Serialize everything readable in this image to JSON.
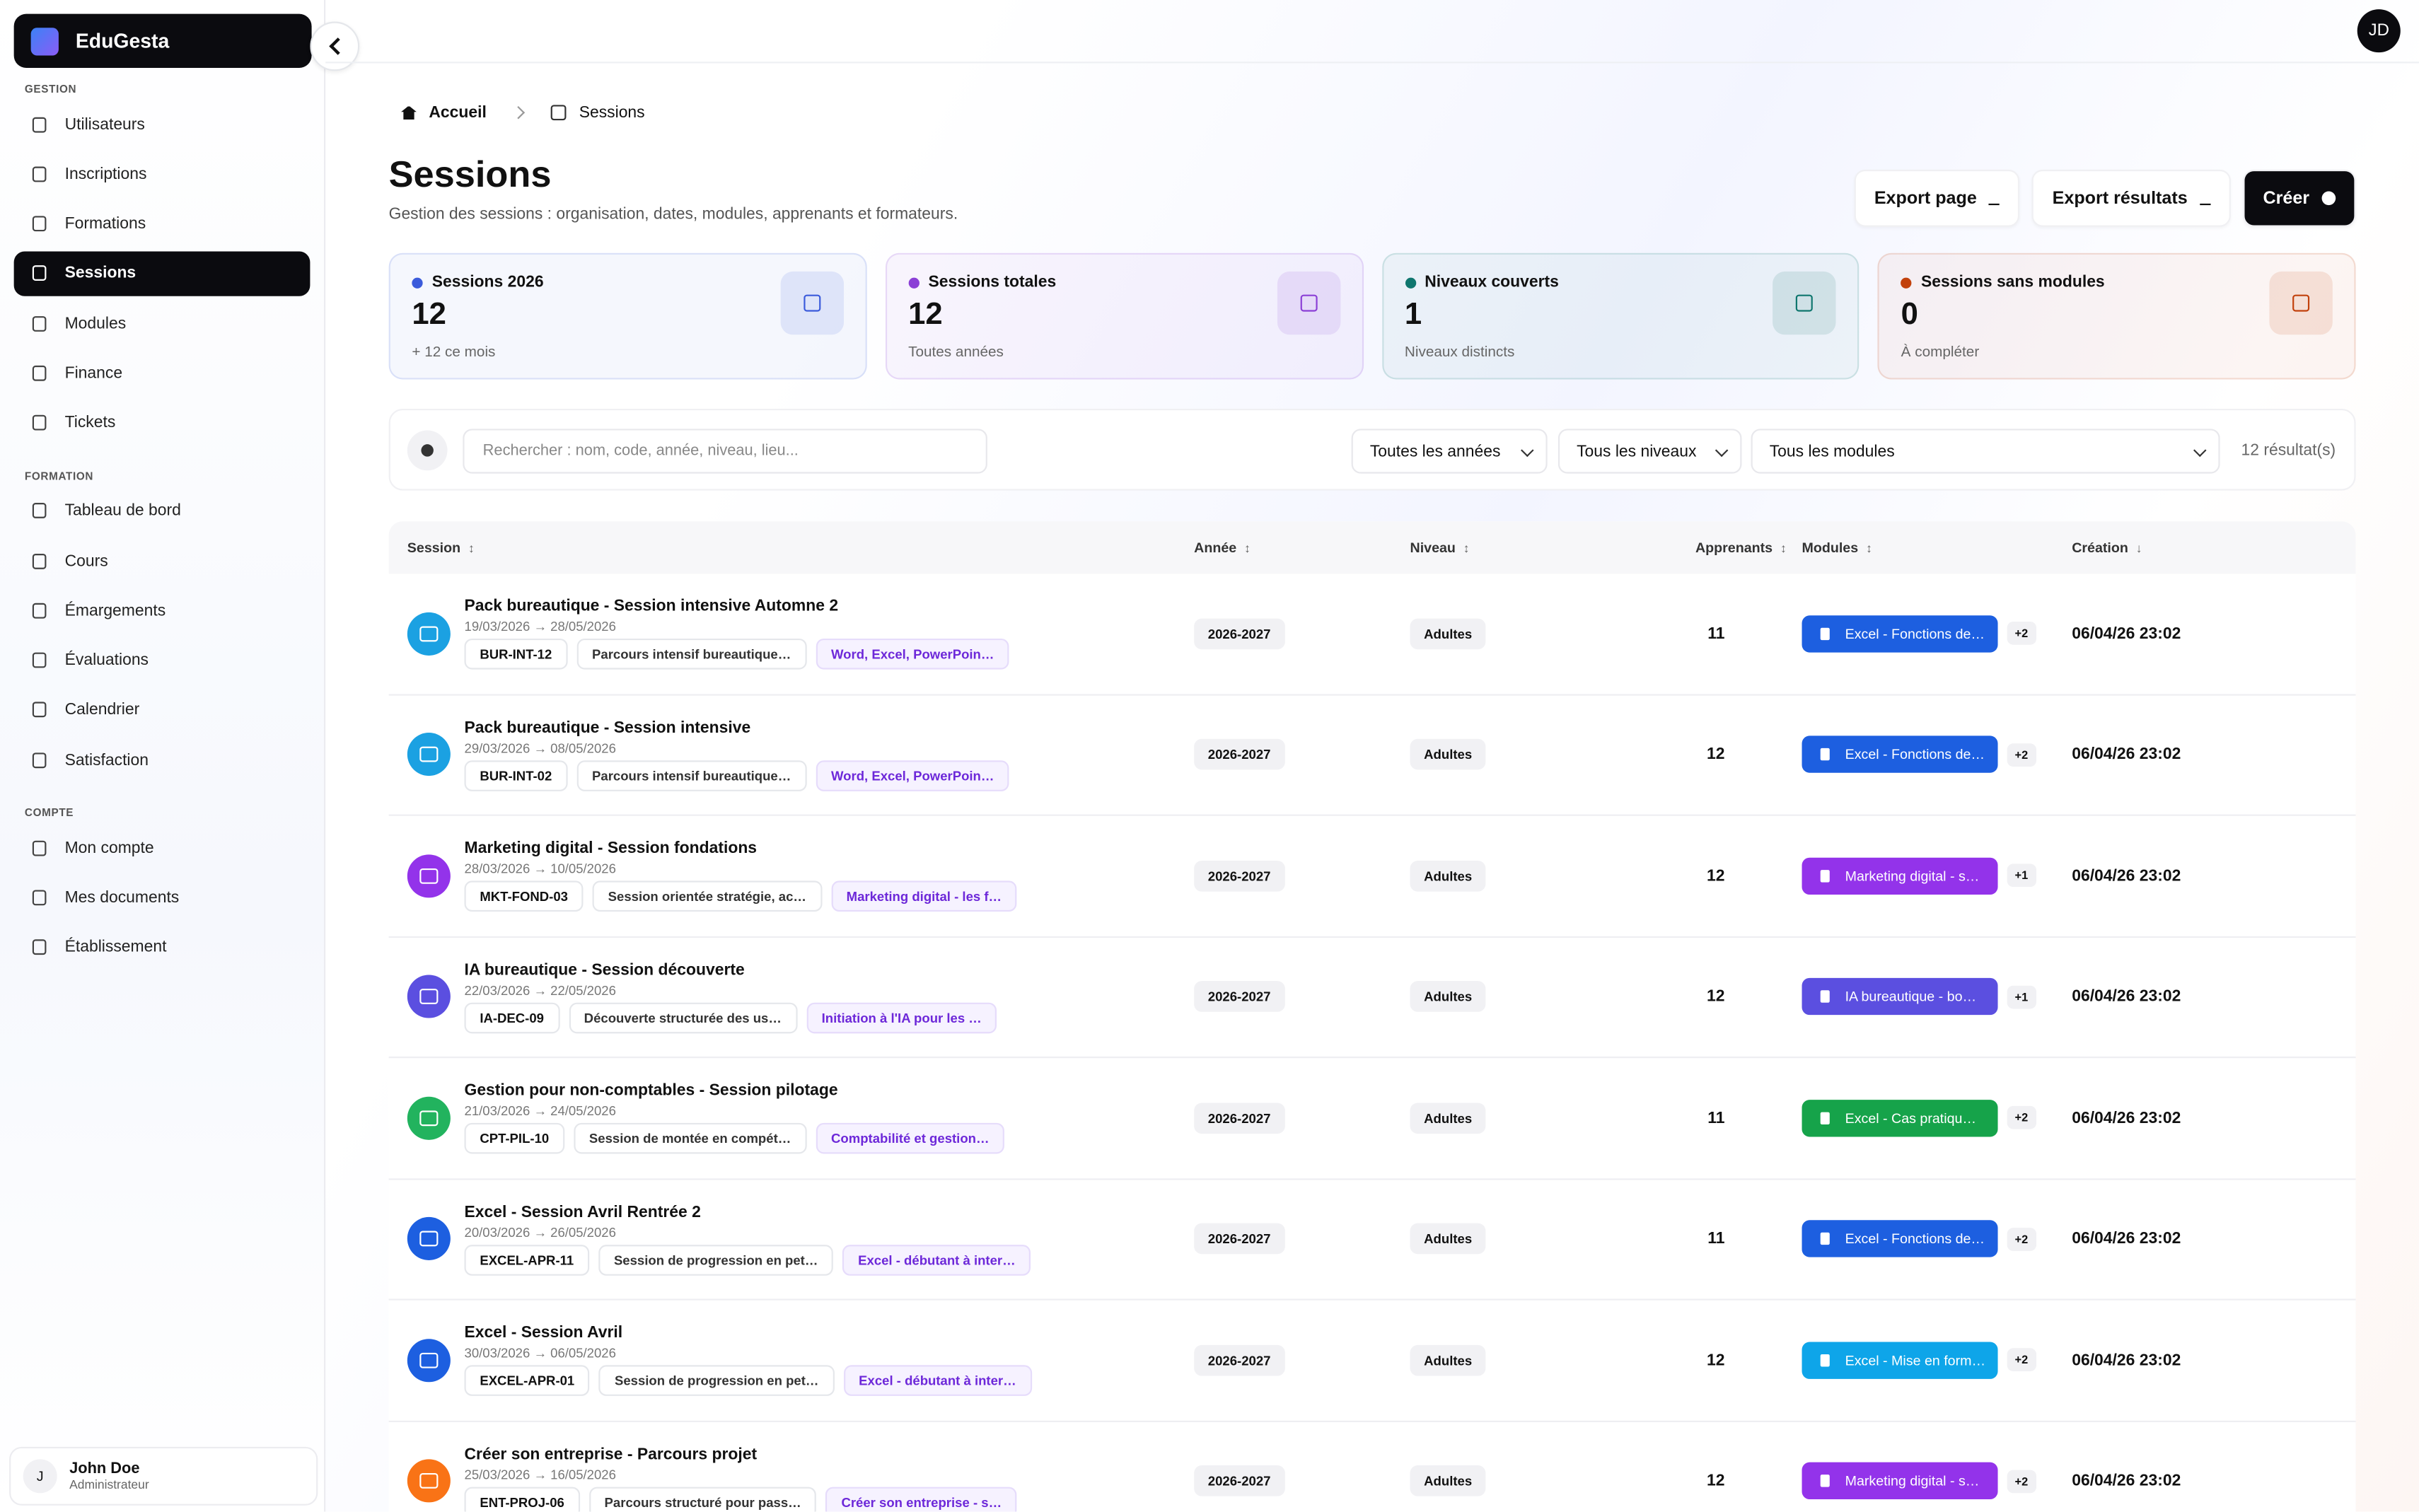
{
  "sidebar": {
    "brand": "EduGesta",
    "sections": [
      {
        "title": "GESTION",
        "items": [
          "Utilisateurs",
          "Inscriptions",
          "Formations",
          "Sessions",
          "Modules",
          "Finance",
          "Tickets"
        ]
      },
      {
        "title": "FORMATION",
        "items": [
          "Tableau de bord",
          "Cours",
          "Émargements",
          "Évaluations",
          "Calendrier",
          "Satisfaction"
        ]
      },
      {
        "title": "COMPTE",
        "items": [
          "Mon compte",
          "Mes documents",
          "Établissement"
        ]
      }
    ],
    "active": "Sessions",
    "user": {
      "initial": "J",
      "name": "John Doe",
      "role": "Administrateur"
    }
  },
  "topbar": {
    "avatar": "JD"
  },
  "breadcrumb": [
    "Accueil",
    "Sessions"
  ],
  "header": {
    "title": "Sessions",
    "subtitle": "Gestion des sessions : organisation, dates, modules, apprenants et formateurs.",
    "buttons": [
      "Export page",
      "Export résultats",
      "Créer"
    ]
  },
  "stats": [
    {
      "label": "Sessions 2026",
      "value": 12,
      "note": "+ 12 ce mois",
      "color": "#3b5bdb"
    },
    {
      "label": "Sessions totales",
      "value": 12,
      "note": "Toutes années",
      "color": "#8b3fd6"
    },
    {
      "label": "Niveaux couverts",
      "value": 1,
      "note": "Niveaux distincts",
      "color": "#0f766e"
    },
    {
      "label": "Sessions sans modules",
      "value": 0,
      "note": "À compléter",
      "color": "#c2410c"
    }
  ],
  "filters": {
    "search_placeholder": "Rechercher : nom, code, année, niveau, lieu...",
    "selects": [
      "Toutes les années",
      "Tous les niveaux",
      "Tous les modules"
    ],
    "result_count": "12 résultat(s)"
  },
  "table": {
    "columns": [
      "Session",
      "Année",
      "Niveau",
      "Apprenants",
      "Modules",
      "Création"
    ],
    "rows": [
      {
        "name": "Pack bureautique - Session intensive Automne 2",
        "dates": "19/03/2026 → 28/05/2026",
        "code": "BUR-INT-12",
        "description": "Parcours intensif bureautique…",
        "formation": "Word, Excel, PowerPoin…",
        "year": "2026-2027",
        "level": "Adultes",
        "learners": 11,
        "module": "Excel - Fonctions de…",
        "more": "+2",
        "created": "06/04/26 23:02",
        "color": "#1ba1e2",
        "module_color": "#1d5fe0"
      },
      {
        "name": "Pack bureautique - Session intensive",
        "dates": "29/03/2026 → 08/05/2026",
        "code": "BUR-INT-02",
        "description": "Parcours intensif bureautique…",
        "formation": "Word, Excel, PowerPoin…",
        "year": "2026-2027",
        "level": "Adultes",
        "learners": 12,
        "module": "Excel - Fonctions de…",
        "more": "+2",
        "created": "06/04/26 23:02",
        "color": "#1ba1e2",
        "module_color": "#1d5fe0"
      },
      {
        "name": "Marketing digital - Session fondations",
        "dates": "28/03/2026 → 10/05/2026",
        "code": "MKT-FOND-03",
        "description": "Session orientée stratégie, ac…",
        "formation": "Marketing digital - les f…",
        "year": "2026-2027",
        "level": "Adultes",
        "learners": 12,
        "module": "Marketing digital - s…",
        "more": "+1",
        "created": "06/04/26 23:02",
        "color": "#9333ea",
        "module_color": "#9333ea"
      },
      {
        "name": "IA bureautique - Session découverte",
        "dates": "22/03/2026 → 22/05/2026",
        "code": "IA-DEC-09",
        "description": "Découverte structurée des us…",
        "formation": "Initiation à l'IA pour les …",
        "year": "2026-2027",
        "level": "Adultes",
        "learners": 12,
        "module": "IA bureautique - bo…",
        "more": "+1",
        "created": "06/04/26 23:02",
        "color": "#5b4fe0",
        "module_color": "#5b4fe0"
      },
      {
        "name": "Gestion pour non-comptables - Session pilotage",
        "dates": "21/03/2026 → 24/05/2026",
        "code": "CPT-PIL-10",
        "description": "Session de montée en compét…",
        "formation": "Comptabilité et gestion…",
        "year": "2026-2027",
        "level": "Adultes",
        "learners": 11,
        "module": "Excel - Cas pratiqu…",
        "more": "+2",
        "created": "06/04/26 23:02",
        "color": "#22b35e",
        "module_color": "#16a34a"
      },
      {
        "name": "Excel - Session Avril Rentrée 2",
        "dates": "20/03/2026 → 26/05/2026",
        "code": "EXCEL-APR-11",
        "description": "Session de progression en pet…",
        "formation": "Excel - débutant à inter…",
        "year": "2026-2027",
        "level": "Adultes",
        "learners": 11,
        "module": "Excel - Fonctions de…",
        "more": "+2",
        "created": "06/04/26 23:02",
        "color": "#1d5fe0",
        "module_color": "#1d5fe0"
      },
      {
        "name": "Excel - Session Avril",
        "dates": "30/03/2026 → 06/05/2026",
        "code": "EXCEL-APR-01",
        "description": "Session de progression en pet…",
        "formation": "Excel - débutant à inter…",
        "year": "2026-2027",
        "level": "Adultes",
        "learners": 12,
        "module": "Excel - Mise en form…",
        "more": "+2",
        "created": "06/04/26 23:02",
        "color": "#1d5fe0",
        "module_color": "#0ea5e9"
      },
      {
        "name": "Créer son entreprise - Parcours projet",
        "dates": "25/03/2026 → 16/05/2026",
        "code": "ENT-PROJ-06",
        "description": "Parcours structuré pour pass…",
        "formation": "Créer son entreprise - s…",
        "year": "2026-2027",
        "level": "Adultes",
        "learners": 12,
        "module": "Marketing digital - s…",
        "more": "+2",
        "created": "06/04/26 23:02",
        "color": "#f97316",
        "module_color": "#9333ea"
      }
    ]
  }
}
